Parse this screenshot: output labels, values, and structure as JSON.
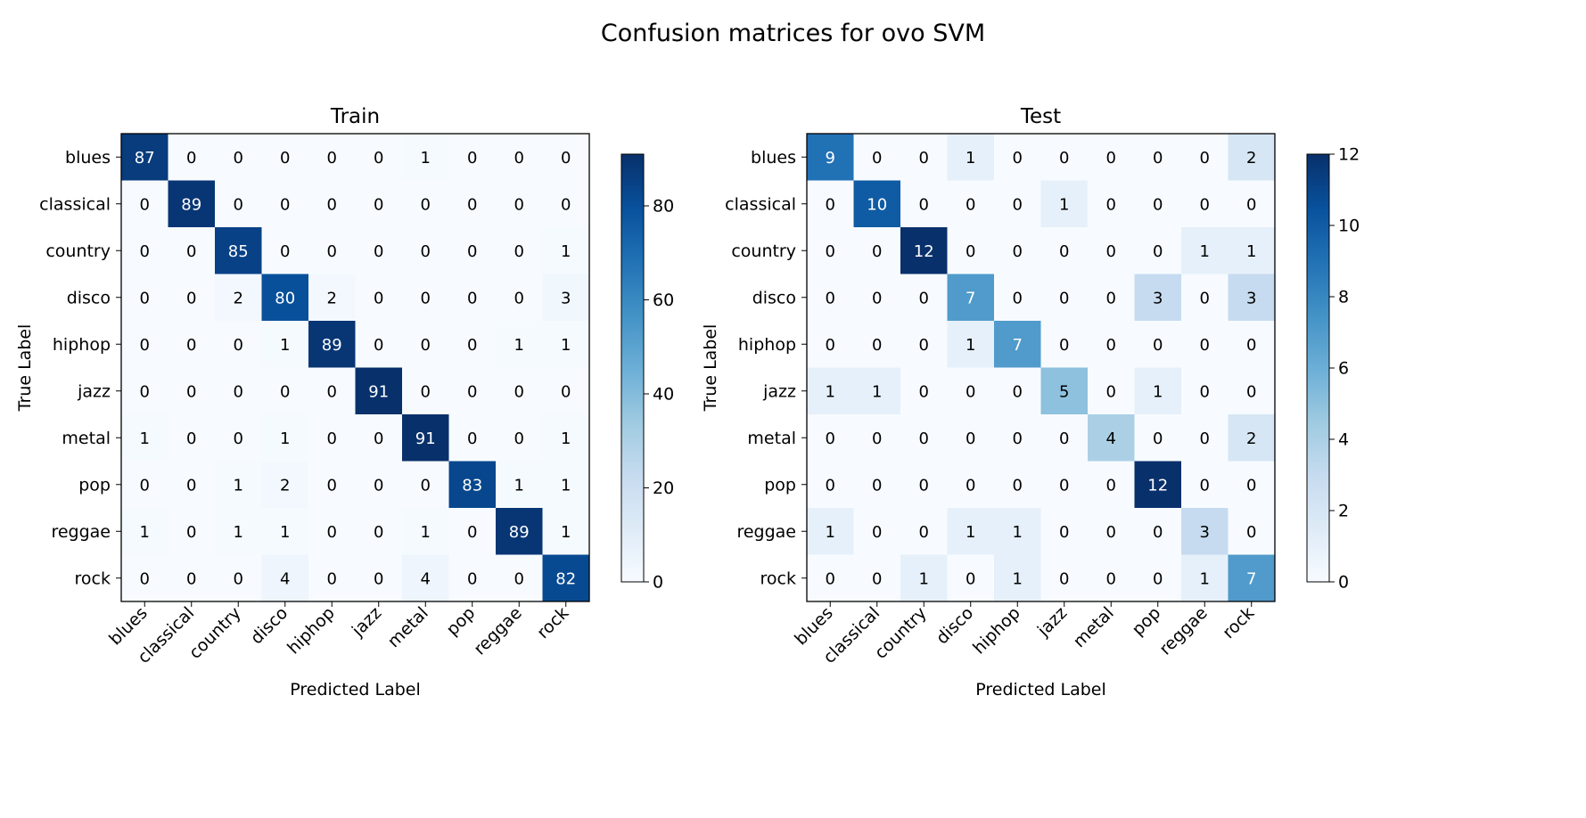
{
  "figure": {
    "suptitle": "Confusion matrices for ovo SVM"
  },
  "chart_data": [
    {
      "type": "heatmap",
      "title": "Train",
      "xlabel": "Predicted Label",
      "ylabel": "True Label",
      "labels": [
        "blues",
        "classical",
        "country",
        "disco",
        "hiphop",
        "jazz",
        "metal",
        "pop",
        "reggae",
        "rock"
      ],
      "matrix": [
        [
          87,
          0,
          0,
          0,
          0,
          0,
          1,
          0,
          0,
          0
        ],
        [
          0,
          89,
          0,
          0,
          0,
          0,
          0,
          0,
          0,
          0
        ],
        [
          0,
          0,
          85,
          0,
          0,
          0,
          0,
          0,
          0,
          1
        ],
        [
          0,
          0,
          2,
          80,
          2,
          0,
          0,
          0,
          0,
          3
        ],
        [
          0,
          0,
          0,
          1,
          89,
          0,
          0,
          0,
          1,
          1
        ],
        [
          0,
          0,
          0,
          0,
          0,
          91,
          0,
          0,
          0,
          0
        ],
        [
          1,
          0,
          0,
          1,
          0,
          0,
          91,
          0,
          0,
          1
        ],
        [
          0,
          0,
          1,
          2,
          0,
          0,
          0,
          83,
          1,
          1
        ],
        [
          1,
          0,
          1,
          1,
          0,
          0,
          1,
          0,
          89,
          1
        ],
        [
          0,
          0,
          0,
          4,
          0,
          0,
          4,
          0,
          0,
          82
        ]
      ],
      "vmin": 0,
      "vmax": 91,
      "colorbar_ticks": [
        0,
        20,
        40,
        60,
        80
      ],
      "colormap": "Blues"
    },
    {
      "type": "heatmap",
      "title": "Test",
      "xlabel": "Predicted Label",
      "ylabel": "True Label",
      "labels": [
        "blues",
        "classical",
        "country",
        "disco",
        "hiphop",
        "jazz",
        "metal",
        "pop",
        "reggae",
        "rock"
      ],
      "matrix": [
        [
          9,
          0,
          0,
          1,
          0,
          0,
          0,
          0,
          0,
          2
        ],
        [
          0,
          10,
          0,
          0,
          0,
          1,
          0,
          0,
          0,
          0
        ],
        [
          0,
          0,
          12,
          0,
          0,
          0,
          0,
          0,
          1,
          1
        ],
        [
          0,
          0,
          0,
          7,
          0,
          0,
          0,
          3,
          0,
          3
        ],
        [
          0,
          0,
          0,
          1,
          7,
          0,
          0,
          0,
          0,
          0
        ],
        [
          1,
          1,
          0,
          0,
          0,
          5,
          0,
          1,
          0,
          0
        ],
        [
          0,
          0,
          0,
          0,
          0,
          0,
          4,
          0,
          0,
          2
        ],
        [
          0,
          0,
          0,
          0,
          0,
          0,
          0,
          12,
          0,
          0
        ],
        [
          1,
          0,
          0,
          1,
          1,
          0,
          0,
          0,
          3,
          0
        ],
        [
          0,
          0,
          1,
          0,
          1,
          0,
          0,
          0,
          1,
          7
        ]
      ],
      "vmin": 0,
      "vmax": 12,
      "colorbar_ticks": [
        0,
        2,
        4,
        6,
        8,
        10,
        12
      ],
      "colormap": "Blues"
    }
  ]
}
